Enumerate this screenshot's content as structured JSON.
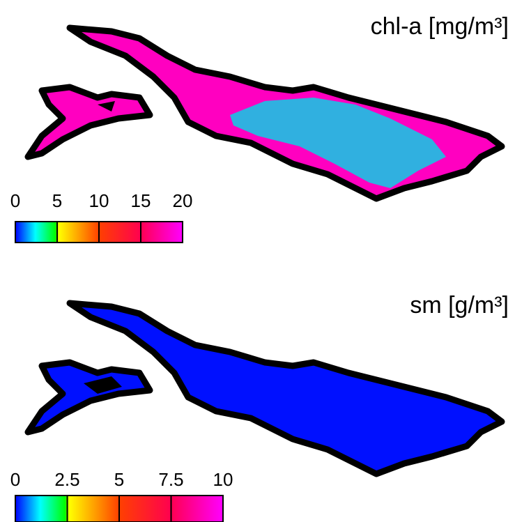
{
  "panels": [
    {
      "title": "chl-a [mg/m³]",
      "colorbar": {
        "lim": [
          0,
          20
        ],
        "ticks": [
          0,
          5,
          10,
          15,
          20
        ]
      }
    },
    {
      "title": "sm [g/m³]",
      "colorbar": {
        "lim": [
          0,
          10
        ],
        "ticks": [
          0,
          2.5,
          5,
          7.5,
          10
        ]
      }
    }
  ]
}
